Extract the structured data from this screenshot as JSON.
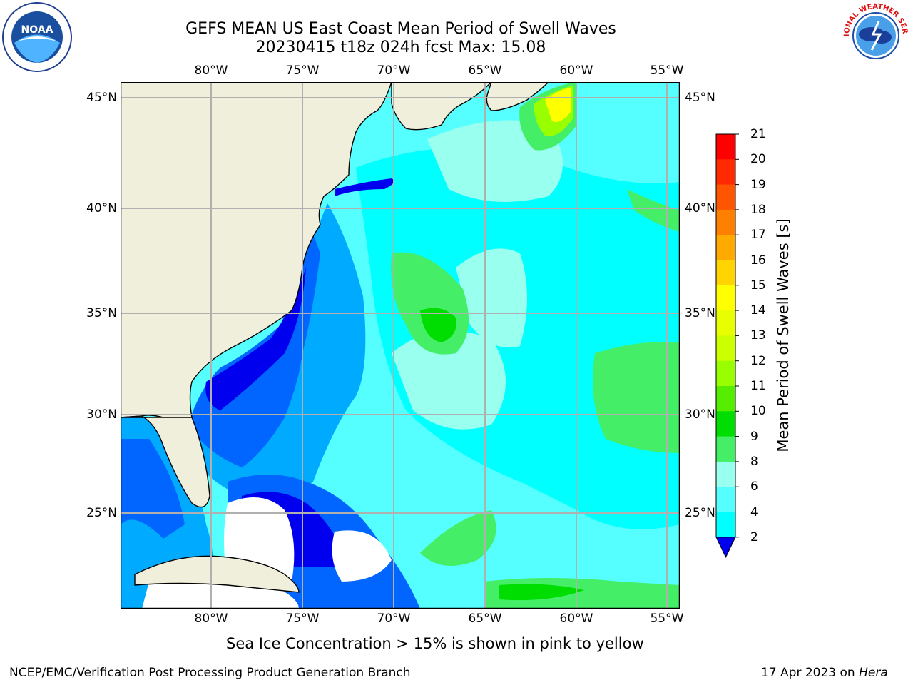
{
  "title": {
    "line1": "GEFS MEAN US East Coast Mean Period of Swell Waves",
    "line2": "20230415 t18z 024h fcst   Max: 15.08"
  },
  "map": {
    "lon_labels": [
      "80°W",
      "75°W",
      "70°W",
      "65°W",
      "60°W",
      "55°W"
    ],
    "lat_labels": [
      "45°N",
      "40°N",
      "35°N",
      "30°N",
      "25°N"
    ]
  },
  "colorbar": {
    "title": "Mean Period of Swell Waves [s]",
    "ticks": [
      "21",
      "20",
      "19",
      "18",
      "17",
      "16",
      "15",
      "14",
      "13",
      "12",
      "11",
      "10",
      "9",
      "8",
      "6",
      "4",
      "2"
    ],
    "colors": [
      "#ff0000",
      "#ff2a00",
      "#ff5500",
      "#ff7f00",
      "#ffaa00",
      "#ffd400",
      "#ffff00",
      "#e8ff00",
      "#ccff00",
      "#99ff00",
      "#55ee00",
      "#00dd00",
      "#44ee66",
      "#99ffee",
      "#55ffff",
      "#00ffff",
      "#00aaff",
      "#0066ff",
      "#0000ee"
    ]
  },
  "note": "Sea Ice Concentration > 15% is shown in pink to yellow",
  "footer": {
    "left": "NCEP/EMC/Verification Post Processing Product Generation Branch",
    "date": "17 Apr 2023 on",
    "machine": "Hera"
  },
  "logos": {
    "noaa_text": "NOAA",
    "nws_text": "NATIONAL WEATHER SERVICE"
  }
}
